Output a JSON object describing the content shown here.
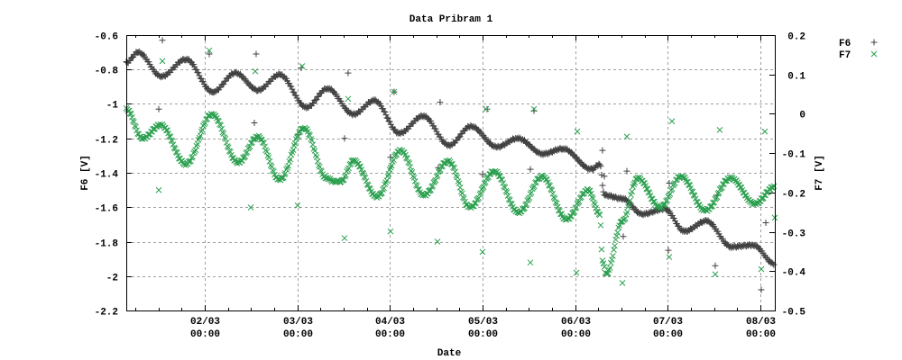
{
  "chart_data": {
    "type": "scatter",
    "title": "Data Pribram 1",
    "xlabel": "Date",
    "ylabel": "F6 [V]",
    "y2label": "F7 [V]",
    "xlim": [
      "01/03 03:40",
      "08/03 03:42"
    ],
    "ylim": [
      -2.2,
      -0.6
    ],
    "y2lim": [
      -0.5,
      0.2
    ],
    "grid": true,
    "legend_position": "outside-top-right",
    "x_ticks": [
      {
        "l1": "02/03",
        "l2": "00:00",
        "x": "02/03 00:00"
      },
      {
        "l1": "03/03",
        "l2": "00:00",
        "x": "03/03 00:00"
      },
      {
        "l1": "04/03",
        "l2": "00:00",
        "x": "04/03 00:00"
      },
      {
        "l1": "05/03",
        "l2": "00:00",
        "x": "05/03 00:00"
      },
      {
        "l1": "06/03",
        "l2": "00:00",
        "x": "06/03 00:00"
      },
      {
        "l1": "07/03",
        "l2": "00:00",
        "x": "07/03 00:00"
      },
      {
        "l1": "08/03",
        "l2": "00:00",
        "x": "08/03 00:00"
      }
    ],
    "y_ticks": [
      "-0.6",
      "-0.8",
      "-1",
      "-1.2",
      "-1.4",
      "-1.6",
      "-1.8",
      "-2",
      "-2.2"
    ],
    "y2_ticks": [
      "0.2",
      "0.1",
      "0",
      "-0.1",
      "-0.2",
      "-0.3",
      "-0.4",
      "-0.5"
    ],
    "series": [
      {
        "name": "F6",
        "axis": "y",
        "marker": "plus",
        "color": "#404040",
        "trend": [
          [
            "01/03 03:40",
            -0.76
          ],
          [
            "01/03 06:43",
            -0.7
          ],
          [
            "01/03 12:47",
            -0.84
          ],
          [
            "01/03 19:06",
            -0.74
          ],
          [
            "02/03 02:06",
            -0.93
          ],
          [
            "02/03 07:57",
            -0.82
          ],
          [
            "02/03 13:47",
            -0.92
          ],
          [
            "02/03 19:23",
            -0.83
          ],
          [
            "03/03 02:24",
            -1.02
          ],
          [
            "03/03 07:47",
            -0.91
          ],
          [
            "03/03 14:34",
            -1.06
          ],
          [
            "03/03 19:56",
            -0.98
          ],
          [
            "04/03 02:28",
            -1.17
          ],
          [
            "04/03 08:33",
            -1.07
          ],
          [
            "04/03 15:20",
            -1.24
          ],
          [
            "04/03 20:56",
            -1.13
          ],
          [
            "05/03 03:43",
            -1.25
          ],
          [
            "05/03 09:05",
            -1.2
          ],
          [
            "05/03 15:38",
            -1.29
          ],
          [
            "05/03 20:47",
            -1.26
          ],
          [
            "06/03 04:15",
            -1.38
          ],
          [
            "06/03 06:21",
            -1.35
          ],
          [
            "06/03 07:32",
            -1.53
          ],
          [
            "06/03 12:12",
            -1.55
          ],
          [
            "06/03 17:20",
            -1.64
          ],
          [
            "06/03 23:10",
            -1.61
          ],
          [
            "07/03 04:19",
            -1.74
          ],
          [
            "07/03 09:56",
            -1.68
          ],
          [
            "07/03 16:28",
            -1.83
          ],
          [
            "07/03 22:05",
            -1.82
          ],
          [
            "08/03 03:42",
            -1.93
          ]
        ],
        "outliers": [
          [
            "01/03 13:01",
            -0.63
          ],
          [
            "01/03 12:05",
            -1.03
          ],
          [
            "02/03 01:10",
            -0.71
          ],
          [
            "02/03 13:19",
            -0.71
          ],
          [
            "02/03 12:51",
            -1.11
          ],
          [
            "03/03 01:00",
            -0.79
          ],
          [
            "03/03 00:04",
            -1.18
          ],
          [
            "03/03 13:09",
            -0.82
          ],
          [
            "03/03 12:13",
            -1.2
          ],
          [
            "04/03 00:08",
            -1.31
          ],
          [
            "04/03 01:04",
            -0.93
          ],
          [
            "04/03 12:59",
            -0.99
          ],
          [
            "04/03 12:31",
            -1.37
          ],
          [
            "05/03 01:09",
            -1.03
          ],
          [
            "04/03 23:58",
            -1.41
          ],
          [
            "05/03 13:18",
            -1.04
          ],
          [
            "05/03 12:22",
            -1.38
          ],
          [
            "06/03 07:03",
            -1.27
          ],
          [
            "06/03 07:32",
            -1.42
          ],
          [
            "06/03 13:22",
            -1.39
          ],
          [
            "06/03 12:26",
            -1.77
          ],
          [
            "07/03 00:21",
            -1.46
          ],
          [
            "07/03 00:07",
            -1.85
          ],
          [
            "07/03 12:16",
            -1.94
          ],
          [
            "07/03 12:43",
            -1.53
          ],
          [
            "08/03 00:11",
            -2.08
          ],
          [
            "08/03 01:22",
            -1.69
          ]
        ]
      },
      {
        "name": "F7",
        "axis": "y2",
        "marker": "cross",
        "color": "#2ca050",
        "trend": [
          [
            "01/03 03:40",
            0.012
          ],
          [
            "01/03 07:52",
            -0.063
          ],
          [
            "01/03 12:33",
            -0.028
          ],
          [
            "01/03 19:06",
            -0.128
          ],
          [
            "02/03 01:52",
            -0.001
          ],
          [
            "02/03 08:39",
            -0.124
          ],
          [
            "02/03 13:47",
            -0.058
          ],
          [
            "02/03 19:23",
            -0.168
          ],
          [
            "03/03 01:42",
            -0.036
          ],
          [
            "03/03 07:33",
            -0.163
          ],
          [
            "03/03 09:25",
            -0.172
          ],
          [
            "03/03 11:17",
            -0.172
          ],
          [
            "03/03 14:34",
            -0.119
          ],
          [
            "03/03 20:38",
            -0.211
          ],
          [
            "04/03 02:42",
            -0.093
          ],
          [
            "04/03 08:47",
            -0.207
          ],
          [
            "04/03 15:06",
            -0.12
          ],
          [
            "04/03 20:43",
            -0.238
          ],
          [
            "05/03 03:01",
            -0.146
          ],
          [
            "05/03 09:19",
            -0.251
          ],
          [
            "05/03 15:24",
            -0.159
          ],
          [
            "05/03 21:43",
            -0.268
          ],
          [
            "06/03 03:19",
            -0.194
          ],
          [
            "06/03 06:21",
            -0.255
          ],
          [
            "06/03 07:03",
            -0.373
          ],
          [
            "06/03 08:00",
            -0.408
          ],
          [
            "06/03 12:12",
            -0.273
          ],
          [
            "06/03 16:10",
            -0.163
          ],
          [
            "06/03 22:00",
            -0.238
          ],
          [
            "07/03 03:23",
            -0.159
          ],
          [
            "07/03 09:42",
            -0.246
          ],
          [
            "07/03 16:15",
            -0.163
          ],
          [
            "07/03 22:32",
            -0.229
          ],
          [
            "08/03 03:42",
            -0.185
          ]
        ],
        "outliers": [
          [
            "01/03 13:01",
            0.134
          ],
          [
            "01/03 12:05",
            -0.194
          ],
          [
            "02/03 01:10",
            0.161
          ],
          [
            "02/03 13:05",
            0.108
          ],
          [
            "02/03 11:55",
            -0.238
          ],
          [
            "03/03 00:04",
            -0.233
          ],
          [
            "03/03 01:14",
            0.121
          ],
          [
            "03/03 12:13",
            -0.316
          ],
          [
            "03/03 13:09",
            0.038
          ],
          [
            "04/03 00:08",
            -0.299
          ],
          [
            "04/03 01:04",
            0.056
          ],
          [
            "04/03 12:17",
            -0.325
          ],
          [
            "05/03 00:55",
            0.012
          ],
          [
            "04/03 23:58",
            -0.351
          ],
          [
            "05/03 13:18",
            0.012
          ],
          [
            "05/03 12:22",
            -0.378
          ],
          [
            "06/03 00:31",
            -0.045
          ],
          [
            "06/03 00:17",
            -0.404
          ],
          [
            "06/03 13:22",
            -0.058
          ],
          [
            "06/03 12:12",
            -0.43
          ],
          [
            "07/03 01:03",
            -0.019
          ],
          [
            "07/03 00:21",
            -0.364
          ],
          [
            "07/03 13:26",
            -0.041
          ],
          [
            "07/03 12:16",
            -0.408
          ],
          [
            "08/03 01:07",
            -0.045
          ],
          [
            "08/03 00:11",
            -0.395
          ],
          [
            "08/03 03:42",
            -0.264
          ]
        ]
      }
    ]
  }
}
